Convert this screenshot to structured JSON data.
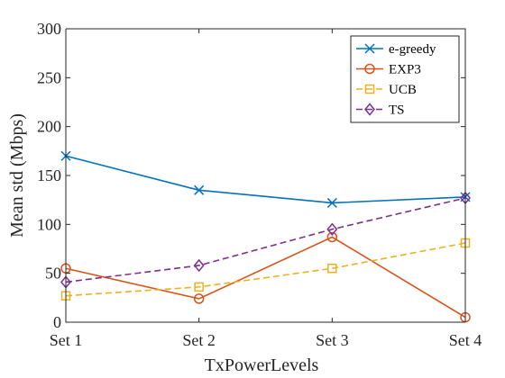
{
  "chart_data": {
    "type": "line",
    "categories": [
      "Set 1",
      "Set 2",
      "Set 3",
      "Set 4"
    ],
    "xlabel": "TxPowerLevels",
    "ylabel": "Mean std (Mbps)",
    "ylim": [
      0,
      300
    ],
    "yticks": [
      0,
      50,
      100,
      150,
      200,
      250,
      300
    ],
    "grid": false,
    "legend_position": "top-right",
    "series": [
      {
        "name": "e-greedy",
        "values": [
          170,
          135,
          122,
          128
        ],
        "color": "#0072BD",
        "marker": "x-icon",
        "line_style": "solid"
      },
      {
        "name": "EXP3",
        "values": [
          55,
          24,
          87,
          5
        ],
        "color": "#D95319",
        "marker": "circle-icon",
        "line_style": "solid"
      },
      {
        "name": "UCB",
        "values": [
          27,
          36,
          55,
          81
        ],
        "color": "#EDB120",
        "marker": "square-icon",
        "line_style": "dashed"
      },
      {
        "name": "TS",
        "values": [
          41,
          58,
          95,
          127
        ],
        "color": "#7E2F8E",
        "marker": "diamond-icon",
        "line_style": "dashed"
      }
    ]
  }
}
